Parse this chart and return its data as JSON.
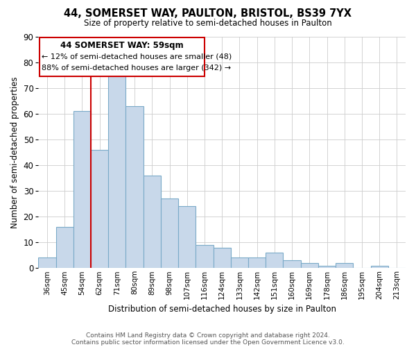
{
  "title": "44, SOMERSET WAY, PAULTON, BRISTOL, BS39 7YX",
  "subtitle": "Size of property relative to semi-detached houses in Paulton",
  "xlabel": "Distribution of semi-detached houses by size in Paulton",
  "ylabel": "Number of semi-detached properties",
  "bar_color": "#c8d8ea",
  "bar_edge_color": "#7aaac8",
  "categories": [
    "36sqm",
    "45sqm",
    "54sqm",
    "62sqm",
    "71sqm",
    "80sqm",
    "89sqm",
    "98sqm",
    "107sqm",
    "116sqm",
    "124sqm",
    "133sqm",
    "142sqm",
    "151sqm",
    "160sqm",
    "169sqm",
    "178sqm",
    "186sqm",
    "195sqm",
    "204sqm",
    "213sqm"
  ],
  "values": [
    4,
    16,
    61,
    46,
    75,
    63,
    36,
    27,
    24,
    9,
    8,
    4,
    4,
    6,
    3,
    2,
    1,
    2,
    0,
    1,
    0
  ],
  "ylim": [
    0,
    90
  ],
  "yticks": [
    0,
    10,
    20,
    30,
    40,
    50,
    60,
    70,
    80,
    90
  ],
  "marker_color": "#cc0000",
  "annotation_title": "44 SOMERSET WAY: 59sqm",
  "annotation_line1": "← 12% of semi-detached houses are smaller (48)",
  "annotation_line2": "88% of semi-detached houses are larger (342) →",
  "footer1": "Contains HM Land Registry data © Crown copyright and database right 2024.",
  "footer2": "Contains public sector information licensed under the Open Government Licence v3.0.",
  "background_color": "#ffffff",
  "grid_color": "#cccccc"
}
